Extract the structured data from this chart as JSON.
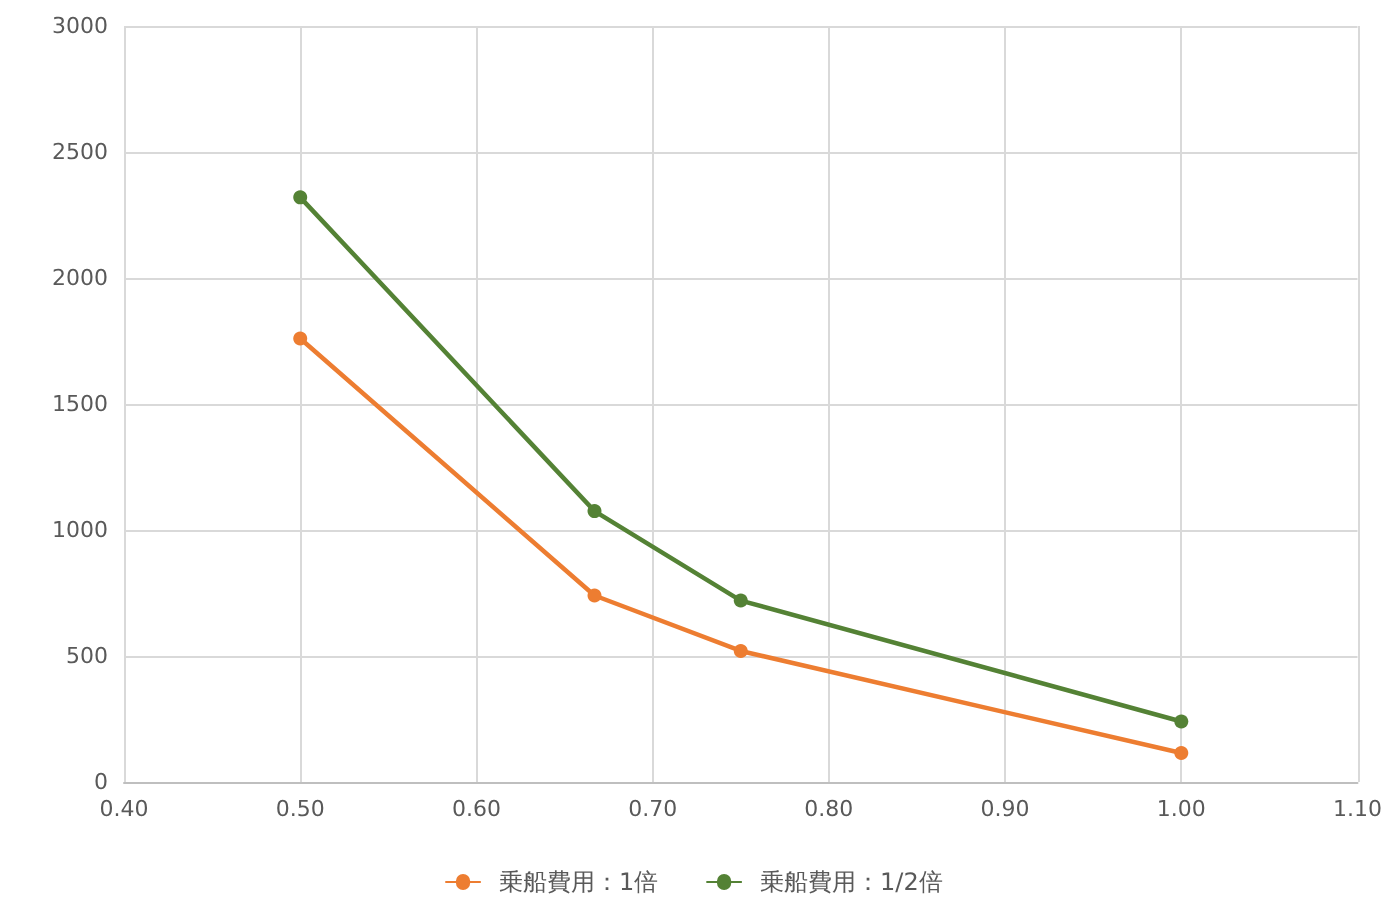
{
  "chart_data": {
    "type": "line",
    "x": [
      0.5,
      0.667,
      0.75,
      1.0
    ],
    "series": [
      {
        "name": "乗船費用：1倍",
        "color": "#ed7d31",
        "values": [
          1760,
          740,
          520,
          115
        ]
      },
      {
        "name": "乗船費用：1/2倍",
        "color": "#548235",
        "values": [
          2320,
          1075,
          720,
          240
        ]
      }
    ],
    "xlim": [
      0.4,
      1.1
    ],
    "xticks": [
      {
        "value": 0.4,
        "label": "0.40"
      },
      {
        "value": 0.5,
        "label": "0.50"
      },
      {
        "value": 0.6,
        "label": "0.60"
      },
      {
        "value": 0.7,
        "label": "0.70"
      },
      {
        "value": 0.8,
        "label": "0.80"
      },
      {
        "value": 0.9,
        "label": "0.90"
      },
      {
        "value": 1.0,
        "label": "1.00"
      },
      {
        "value": 1.1,
        "label": "1.10"
      }
    ],
    "ylim": [
      0,
      3000
    ],
    "yticks": [
      0,
      500,
      1000,
      1500,
      2000,
      2500,
      3000
    ],
    "grid": true,
    "legend": "bottom",
    "marker": "circle",
    "line_style": "solid"
  }
}
